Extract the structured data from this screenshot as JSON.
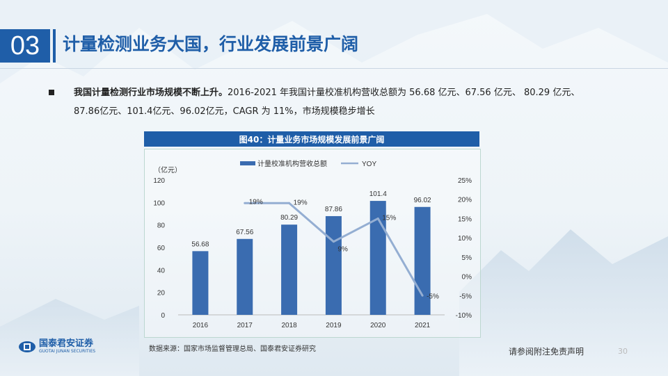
{
  "header": {
    "section_number": "03",
    "title": "计量检测业务大国，行业发展前景广阔"
  },
  "bullet": {
    "bold_text": "我国计量检测行业市场规模不断上升。",
    "line1_rest": "2016-2021 年我国计量校准机构营收总额为 56.68 亿元、67.56 亿元、 80.29 亿元、",
    "line2": "87.86亿元、101.4亿元、96.02亿元，CAGR  为 11%，市场规模稳步增长"
  },
  "figure": {
    "title": "图40：计量业务市场规模发展前景广阔",
    "source": "数据来源：国家市场监督管理总局、国泰君安证券研究"
  },
  "chart_data": {
    "type": "bar",
    "categories": [
      "2016",
      "2017",
      "2018",
      "2019",
      "2020",
      "2021"
    ],
    "series": [
      {
        "name": "计量校准机构营收总额",
        "type": "bar",
        "axis": "left",
        "values": [
          56.68,
          67.56,
          80.29,
          87.86,
          101.4,
          96.02
        ],
        "labels": [
          "56.68",
          "67.56",
          "80.29",
          "87.86",
          "101.4",
          "96.02"
        ],
        "color": "#3a6cb0"
      },
      {
        "name": "YOY",
        "type": "line",
        "axis": "right",
        "x": [
          "2017",
          "2018",
          "2019",
          "2020",
          "2021"
        ],
        "values": [
          19,
          19,
          9,
          15,
          -5
        ],
        "labels": [
          "19%",
          "19%",
          "9%",
          "15%",
          "-5%"
        ],
        "color": "#94aed2"
      }
    ],
    "y_left": {
      "unit": "（亿元）",
      "min": 0,
      "max": 120,
      "ticks": [
        "0",
        "20",
        "40",
        "60",
        "80",
        "100",
        "120"
      ]
    },
    "y_right": {
      "min": -10,
      "max": 25,
      "ticks": [
        "-10%",
        "-5%",
        "0%",
        "5%",
        "10%",
        "15%",
        "20%",
        "25%"
      ]
    },
    "legend_position": "top",
    "grid": false
  },
  "footer": {
    "logo_cn": "国泰君安证券",
    "logo_en": "GUOTAI JUNAN SECURITIES",
    "disclaimer": "请参阅附注免责声明",
    "page_number": "30"
  },
  "colors": {
    "brand": "#1f5ea8",
    "bar": "#3a6cb0",
    "line": "#94aed2"
  }
}
